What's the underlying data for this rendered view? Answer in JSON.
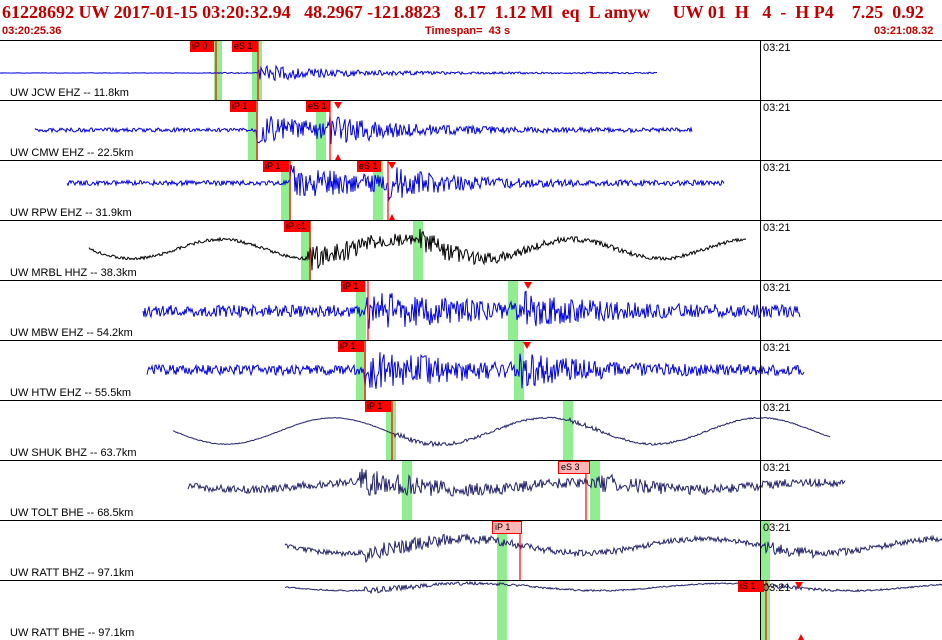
{
  "header": {
    "event_line": "61228692 UW 2017-01-15 03:20:32.94   48.2967 -121.8823   8.17  1.12 Ml  eq  L amyw     UW 01  H   4  -  H P4    7.25  0.92",
    "start_time": "03:20:25.36",
    "timespan": "Timespan=  43 s",
    "end_time": "03:21:08.32"
  },
  "colors": {
    "header_text": "#c00000",
    "trace_blue": "#0000e0",
    "trace_black": "#000000",
    "trace_navy": "#22226a",
    "pick_red": "#ff0000",
    "pick_pink": "#ffb6b6",
    "window_green": "#90ee90"
  },
  "panels": [
    {
      "label": "UW JCW EHZ -- 11.8km",
      "minute": "03:21",
      "color": "trace_blue",
      "picks": [
        {
          "text": "iP 0",
          "style": "red"
        },
        {
          "text": "eS 1",
          "style": "red"
        }
      ]
    },
    {
      "label": "UW CMW EHZ -- 22.5km",
      "minute": "03:21",
      "color": "trace_blue",
      "picks": [
        {
          "text": "iP 1",
          "style": "red"
        },
        {
          "text": "eS 1",
          "style": "red"
        }
      ]
    },
    {
      "label": "UW RPW EHZ -- 31.9km",
      "minute": "03:21",
      "color": "trace_blue",
      "picks": [
        {
          "text": "iP 1",
          "style": "red"
        },
        {
          "text": "eS 1",
          "style": "red"
        }
      ]
    },
    {
      "label": "UW MRBL HHZ -- 38.3km",
      "minute": "03:21",
      "color": "trace_black",
      "picks": [
        {
          "text": "iP c1",
          "style": "red"
        }
      ]
    },
    {
      "label": "UW MBW EHZ -- 54.2km",
      "minute": "03:21",
      "color": "trace_blue",
      "picks": [
        {
          "text": "iP 1",
          "style": "red"
        }
      ]
    },
    {
      "label": "UW HTW EHZ -- 55.5km",
      "minute": "03:21",
      "color": "trace_blue",
      "picks": [
        {
          "text": "iP 1",
          "style": "red"
        }
      ]
    },
    {
      "label": "UW SHUK BHZ -- 63.7km",
      "minute": "03:21",
      "color": "trace_navy",
      "picks": [
        {
          "text": "iP 1",
          "style": "red"
        }
      ]
    },
    {
      "label": "UW TOLT BHE -- 68.5km",
      "minute": "03:21",
      "color": "trace_navy",
      "picks": [
        {
          "text": "eS 3",
          "style": "pink"
        }
      ]
    },
    {
      "label": "UW RATT BHZ -- 97.1km",
      "minute": "03:21",
      "color": "trace_navy",
      "picks": [
        {
          "text": "iP 1",
          "style": "pink"
        }
      ]
    },
    {
      "label": "UW RATT BHE -- 97.1km",
      "minute": "03:21",
      "color": "trace_navy",
      "picks": [
        {
          "text": "iS 1",
          "style": "red"
        }
      ]
    }
  ]
}
